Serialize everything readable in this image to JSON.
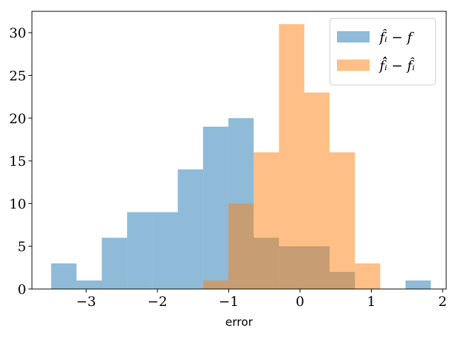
{
  "chart_data": {
    "type": "histogram",
    "title": "",
    "xlabel": "error",
    "ylabel": "",
    "xlim": [
      -3.76,
      2.05
    ],
    "ylim": [
      0,
      32.5
    ],
    "xticks": [
      -3,
      -2,
      -1,
      0,
      1,
      2
    ],
    "xtick_labels": [
      "−3",
      "−2",
      "−1",
      "0",
      "1",
      "2"
    ],
    "yticks": [
      0,
      5,
      10,
      15,
      20,
      25,
      30
    ],
    "ytick_labels": [
      "0",
      "5",
      "10",
      "15",
      "20",
      "25",
      "30"
    ],
    "grid": false,
    "legend_position": "top-right",
    "series": [
      {
        "name": "f̂ᵢ − f",
        "color": "#1f77b4",
        "opacity": 0.5,
        "bin_edges": [
          -3.49,
          -3.135,
          -2.78,
          -2.425,
          -2.07,
          -1.715,
          -1.36,
          -1.005,
          -0.65,
          -0.295,
          0.06,
          0.415,
          0.77,
          1.125,
          1.48,
          1.835
        ],
        "counts": [
          3,
          1,
          6,
          9,
          9,
          14,
          19,
          20,
          6,
          5,
          5,
          2,
          0,
          0,
          1
        ]
      },
      {
        "name": "f̂̂ᵢ − f̂ᵢ",
        "color": "#ff7f0e",
        "opacity": 0.5,
        "bin_edges": [
          -1.36,
          -1.005,
          -0.65,
          -0.295,
          0.06,
          0.415,
          0.77,
          1.125
        ],
        "counts": [
          1,
          10,
          16,
          31,
          23,
          16,
          3
        ]
      }
    ]
  }
}
